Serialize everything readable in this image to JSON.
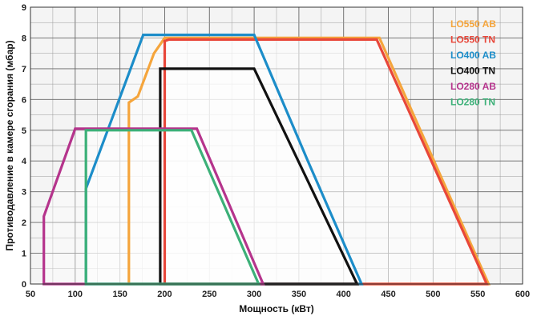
{
  "chart_data": {
    "type": "area",
    "xlabel": "Мощность  (кВт)",
    "ylabel": "Противодавление в камере сгорания (мбар)",
    "xlim": [
      50,
      600
    ],
    "ylim": [
      0,
      9
    ],
    "xticks": [
      50,
      100,
      150,
      200,
      250,
      300,
      350,
      400,
      450,
      500,
      550,
      600
    ],
    "yticks": [
      0,
      1,
      2,
      3,
      4,
      5,
      6,
      7,
      8,
      9
    ],
    "grid": true,
    "legend_position": "top-right",
    "series": [
      {
        "name": "LO550 AB",
        "color": "#f5a53c",
        "points": [
          [
            160,
            0
          ],
          [
            160,
            5.9
          ],
          [
            170,
            6.1
          ],
          [
            188,
            7.5
          ],
          [
            200,
            8.0
          ],
          [
            440,
            8.0
          ],
          [
            562,
            0
          ]
        ]
      },
      {
        "name": "LO550 TN",
        "color": "#e8473a",
        "points": [
          [
            200,
            0
          ],
          [
            200,
            7.9
          ],
          [
            205,
            7.95
          ],
          [
            437,
            7.95
          ],
          [
            560,
            0
          ]
        ]
      },
      {
        "name": "LO400 AB",
        "color": "#1c8dc9",
        "points": [
          [
            112,
            0
          ],
          [
            112,
            3.1
          ],
          [
            176,
            8.1
          ],
          [
            300,
            8.1
          ],
          [
            360,
            4.0
          ],
          [
            420,
            0
          ]
        ]
      },
      {
        "name": "LO400 TN",
        "color": "#111111",
        "points": [
          [
            195,
            0
          ],
          [
            195,
            7.0
          ],
          [
            300,
            7.0
          ],
          [
            415,
            0
          ]
        ]
      },
      {
        "name": "LO280 AB",
        "color": "#b5348c",
        "points": [
          [
            65,
            0
          ],
          [
            65,
            2.2
          ],
          [
            100,
            5.05
          ],
          [
            236,
            5.05
          ],
          [
            310,
            0
          ]
        ]
      },
      {
        "name": "LO280 TN",
        "color": "#3cb078",
        "points": [
          [
            112,
            0
          ],
          [
            112,
            5.0
          ],
          [
            230,
            5.0
          ],
          [
            305,
            0
          ]
        ]
      }
    ]
  }
}
